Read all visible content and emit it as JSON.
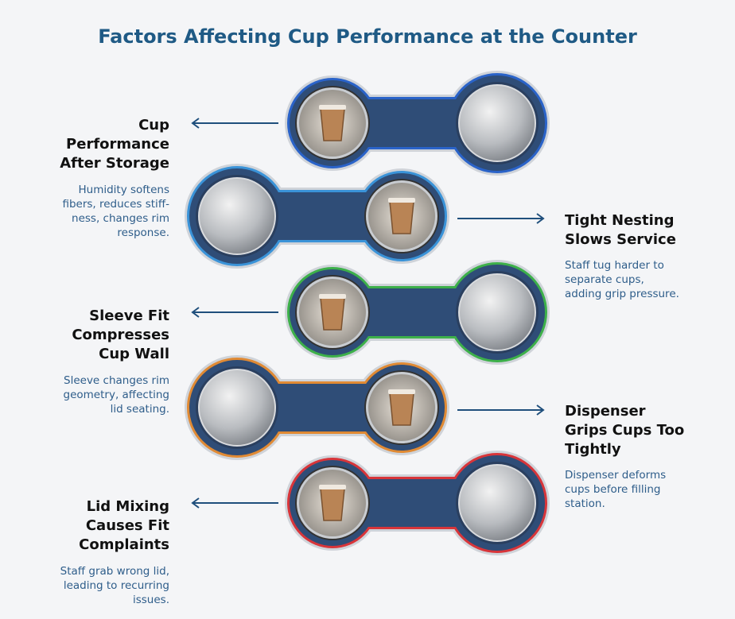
{
  "title": "Factors Affecting Cup Performance at the Counter",
  "items": [
    {
      "title": [
        "Cup",
        "Performance",
        "After Storage"
      ],
      "description": [
        "Humidity softens",
        "fibers, reduces stiff-",
        "ness, changes rim",
        "response."
      ]
    },
    {
      "title": [
        "Tight Nesting",
        "Slows Service"
      ],
      "description": [
        "Staff tug harder to",
        "separate cups,",
        "adding grip pressure."
      ]
    },
    {
      "title": [
        "Sleeve Fit",
        "Compresses",
        "Cup Wall"
      ],
      "description": [
        "Sleeve changes rim",
        "geometry, affecting",
        "lid seating."
      ]
    },
    {
      "title": [
        "Dispenser",
        "Grips Cups Too",
        "Tightly"
      ],
      "description": [
        "Dispenser deforms",
        "cups before filling",
        "station."
      ]
    },
    {
      "title": [
        "Lid Mixing",
        "Causes Fit",
        "Complaints"
      ],
      "description": [
        "Staff grab wrong lid,",
        "leading to recurring",
        "issues."
      ]
    }
  ]
}
